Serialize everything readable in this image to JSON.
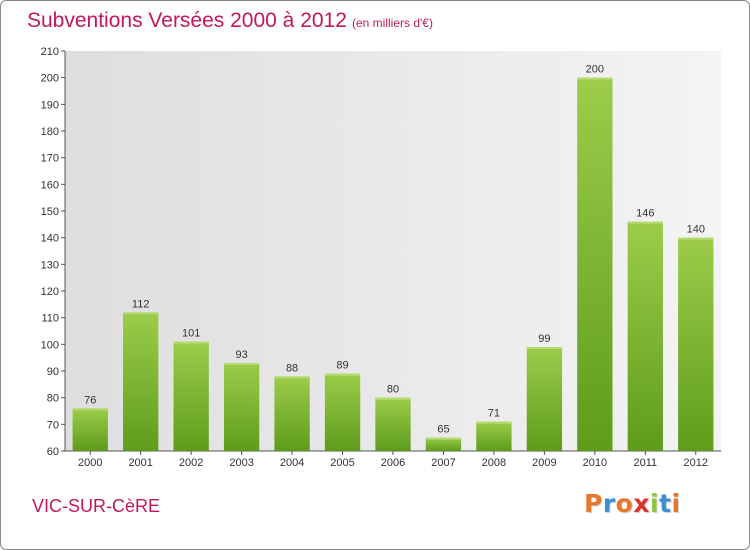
{
  "header": {
    "title": "Subventions Versées 2000 à 2012",
    "subtitle": "(en milliers d'€)"
  },
  "footer": {
    "commune": "VIC-SUR-CèRE",
    "logo_letters": [
      "P",
      "r",
      "o",
      "x",
      "i",
      "t",
      "i"
    ],
    "logo_colors": [
      "#e8762c",
      "#3a8fd6",
      "#e8762c",
      "#d9342b",
      "#8dc63f",
      "#3a8fd6",
      "#e8762c"
    ]
  },
  "colors": {
    "accent": "#c2185b",
    "bar_light": "#9ccc4a",
    "bar_dark": "#5e9c1c",
    "plot_background": "#ececec"
  },
  "chart_data": {
    "type": "bar",
    "title": "Subventions Versées 2000 à 2012",
    "subtitle": "(en milliers d'€)",
    "xlabel": "",
    "ylabel": "",
    "categories": [
      "2000",
      "2001",
      "2002",
      "2003",
      "2004",
      "2005",
      "2006",
      "2007",
      "2008",
      "2009",
      "2010",
      "2011",
      "2012"
    ],
    "values": [
      76,
      112,
      101,
      93,
      88,
      89,
      80,
      65,
      71,
      99,
      200,
      146,
      140
    ],
    "ylim": [
      60,
      210
    ],
    "yticks": [
      60,
      70,
      80,
      90,
      100,
      110,
      120,
      130,
      140,
      150,
      160,
      170,
      180,
      190,
      200,
      210
    ],
    "grid": false,
    "legend": "none"
  }
}
